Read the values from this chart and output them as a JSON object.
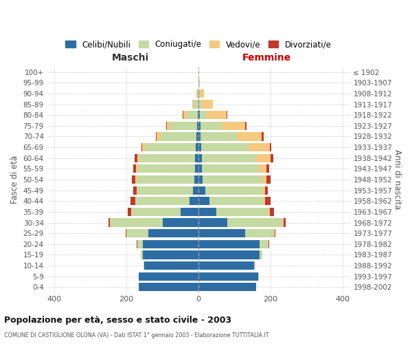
{
  "age_groups": [
    "0-4",
    "5-9",
    "10-14",
    "15-19",
    "20-24",
    "25-29",
    "30-34",
    "35-39",
    "40-44",
    "45-49",
    "50-54",
    "55-59",
    "60-64",
    "65-69",
    "70-74",
    "75-79",
    "80-84",
    "85-89",
    "90-94",
    "95-99",
    "100+"
  ],
  "birth_years": [
    "1998-2002",
    "1993-1997",
    "1988-1992",
    "1983-1987",
    "1978-1982",
    "1973-1977",
    "1968-1972",
    "1963-1967",
    "1958-1962",
    "1953-1957",
    "1948-1952",
    "1943-1947",
    "1938-1942",
    "1933-1937",
    "1928-1932",
    "1923-1927",
    "1918-1922",
    "1913-1917",
    "1908-1912",
    "1903-1907",
    "≤ 1902"
  ],
  "males": {
    "celibe": [
      165,
      165,
      150,
      155,
      155,
      140,
      100,
      50,
      25,
      15,
      12,
      10,
      10,
      8,
      5,
      4,
      2,
      1,
      0,
      0,
      0
    ],
    "coniugato": [
      0,
      1,
      2,
      5,
      15,
      60,
      145,
      135,
      150,
      155,
      160,
      160,
      155,
      140,
      100,
      75,
      30,
      12,
      4,
      1,
      0
    ],
    "vedovo": [
      0,
      0,
      0,
      0,
      0,
      0,
      1,
      1,
      1,
      2,
      3,
      4,
      5,
      8,
      12,
      8,
      10,
      5,
      2,
      0,
      0
    ],
    "divorziato": [
      0,
      0,
      0,
      0,
      1,
      3,
      3,
      10,
      12,
      10,
      10,
      8,
      8,
      3,
      2,
      3,
      2,
      0,
      0,
      0,
      0
    ]
  },
  "females": {
    "nubile": [
      160,
      165,
      155,
      170,
      170,
      130,
      80,
      50,
      30,
      18,
      12,
      10,
      10,
      8,
      6,
      5,
      3,
      2,
      1,
      0,
      0
    ],
    "coniugata": [
      0,
      2,
      3,
      8,
      25,
      80,
      155,
      145,
      150,
      160,
      165,
      158,
      150,
      130,
      100,
      60,
      20,
      8,
      3,
      1,
      0
    ],
    "vedova": [
      0,
      0,
      0,
      0,
      0,
      1,
      2,
      3,
      4,
      6,
      12,
      20,
      40,
      60,
      70,
      65,
      55,
      30,
      12,
      2,
      0
    ],
    "divorziata": [
      0,
      0,
      0,
      0,
      1,
      2,
      5,
      12,
      15,
      8,
      10,
      8,
      8,
      4,
      4,
      3,
      2,
      0,
      0,
      0,
      0
    ]
  },
  "colors": {
    "celibe": "#2E6DA4",
    "coniugato": "#C5D9A3",
    "vedovo": "#F5C97F",
    "divorziato": "#C0392B"
  },
  "title_main": "Popolazione per età, sesso e stato civile - 2003",
  "title_sub": "COMUNE DI CASTIGLIONE OLONA (VA) - Dati ISTAT 1° gennaio 2003 - Elaborazione TUTTITALIA.IT",
  "xlabel_left": "Maschi",
  "xlabel_right": "Femmine",
  "ylabel_left": "Fasce di età",
  "ylabel_right": "Anni di nascita",
  "xlim": 420,
  "legend_labels": [
    "Celibi/Nubili",
    "Coniugati/e",
    "Vedovi/e",
    "Divorziati/e"
  ],
  "background_color": "#ffffff"
}
